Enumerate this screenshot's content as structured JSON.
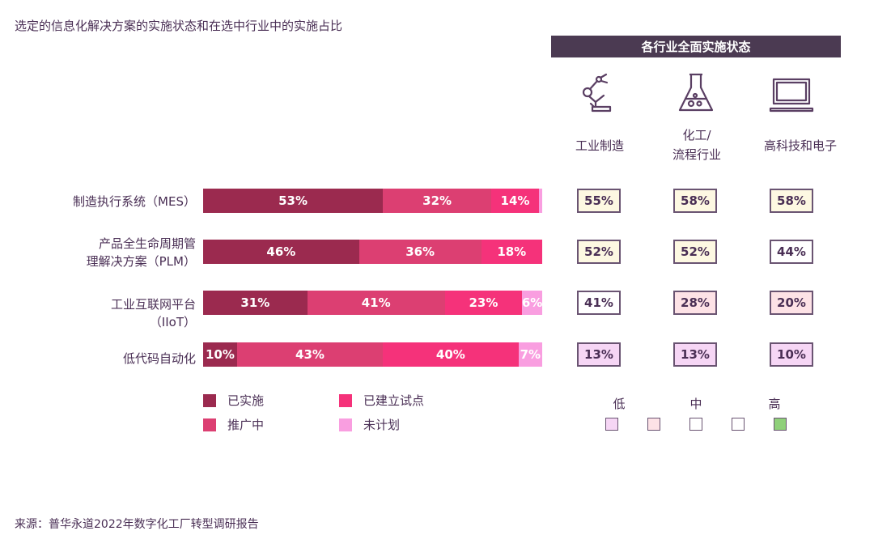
{
  "title": "选定的信息化解决方案的实施状态和在选中行业中的实施占比",
  "source": "来源：普华永道2022年数字化工厂转型调研报告",
  "chart_data": [
    {
      "type": "bar",
      "orientation": "horizontal-stacked",
      "categories": [
        "制造执行系统（MES）",
        "产品全生命周期管\n理解决方案（PLM）",
        "工业互联网平台\n（IIoT）",
        "低代码自动化"
      ],
      "series": [
        {
          "name": "已实施",
          "color": "#9b2a4f",
          "values": [
            53,
            46,
            31,
            10
          ],
          "labels": [
            "53%",
            "46%",
            "31%",
            "10%"
          ]
        },
        {
          "name": "推广中",
          "color": "#dc3f72",
          "values": [
            32,
            36,
            41,
            43
          ],
          "labels": [
            "32%",
            "36%",
            "41%",
            "43%"
          ]
        },
        {
          "name": "已建立试点",
          "color": "#f5327a",
          "values": [
            14,
            18,
            23,
            40
          ],
          "labels": [
            "14%",
            "18%",
            "23%",
            "40%"
          ]
        },
        {
          "name": "未计划",
          "color": "#f99ee0",
          "values": [
            1,
            0,
            6,
            7
          ],
          "labels": [
            "",
            "",
            "6%",
            "7%"
          ]
        }
      ]
    },
    {
      "type": "table",
      "title": "各行业全面实施状态",
      "columns": [
        "工业制造",
        "化工/\n流程行业",
        "高科技和电子"
      ],
      "rows": [
        "制造执行系统（MES）",
        "产品全生命周期管理解决方案（PLM）",
        "工业互联网平台（IIoT）",
        "低代码自动化"
      ],
      "values": [
        [
          "55%",
          "58%",
          "58%"
        ],
        [
          "52%",
          "52%",
          "44%"
        ],
        [
          "41%",
          "28%",
          "20%"
        ],
        [
          "13%",
          "13%",
          "10%"
        ]
      ],
      "levels": [
        [
          "mid",
          "mid",
          "mid"
        ],
        [
          "mid",
          "mid",
          "mid-low"
        ],
        [
          "mid-low",
          "low-mid",
          "low-mid"
        ],
        [
          "low",
          "low",
          "low"
        ]
      ],
      "scale": {
        "labels": [
          "低",
          "中",
          "高"
        ],
        "colors": [
          "#f6d6f5",
          "#fde2e6",
          "#ffffff",
          "#ffffff",
          "#8fd07a"
        ]
      },
      "level_colors": {
        "low": "#f6d6f5",
        "low-mid": "#fde2e6",
        "mid-low": "#ffffff",
        "mid": "#fdf8e2"
      }
    }
  ],
  "icons": [
    "robot-arm-icon",
    "flask-icon",
    "laptop-icon"
  ]
}
